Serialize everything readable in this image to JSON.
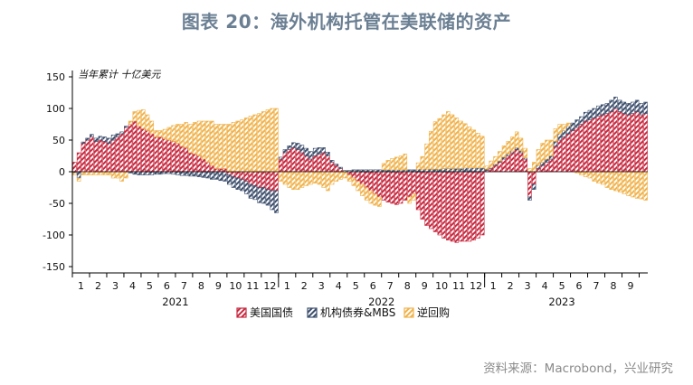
{
  "title": "图表 20：海外机构托管在美联储的资产",
  "source": "资料来源：Macrobond，兴业研究",
  "chart_data": {
    "type": "bar",
    "stacked": true,
    "units": "当年累计  十亿美元",
    "ylim": [
      -160,
      160
    ],
    "yticks": [
      150,
      100,
      50,
      0,
      -50,
      -100,
      -150
    ],
    "legend_position": "bottom",
    "colors": {
      "treasury": "#c8283f",
      "agency": "#3d4f6d",
      "repo": "#f1b24a"
    },
    "months": [
      "1",
      "2",
      "3",
      "4",
      "5",
      "6",
      "7",
      "8",
      "9",
      "10",
      "11",
      "12",
      "1",
      "2",
      "3",
      "4",
      "5",
      "6",
      "7",
      "8",
      "9",
      "10",
      "11",
      "12",
      "1",
      "2",
      "3",
      "4",
      "5",
      "6",
      "7",
      "8",
      "9"
    ],
    "years": [
      {
        "label": "2021",
        "start_month_index": 0,
        "month_count": 12
      },
      {
        "label": "2022",
        "start_month_index": 12,
        "month_count": 12
      },
      {
        "label": "2023",
        "start_month_index": 24,
        "month_count": 9
      }
    ],
    "weeks_per_month": 4,
    "series": [
      {
        "key": "treasury",
        "name": "美国国债",
        "values": [
          15,
          30,
          45,
          50,
          55,
          48,
          50,
          48,
          45,
          50,
          55,
          60,
          70,
          75,
          80,
          72,
          68,
          65,
          60,
          55,
          55,
          52,
          50,
          48,
          45,
          40,
          38,
          30,
          28,
          25,
          20,
          15,
          10,
          5,
          5,
          5,
          -5,
          -8,
          -10,
          -12,
          -15,
          -20,
          -22,
          -25,
          -25,
          -28,
          -30,
          -30,
          20,
          30,
          35,
          38,
          35,
          30,
          25,
          20,
          25,
          28,
          30,
          25,
          15,
          10,
          5,
          0,
          -5,
          -10,
          -15,
          -20,
          -25,
          -30,
          -35,
          -40,
          -45,
          -48,
          -50,
          -52,
          -50,
          -45,
          -40,
          -35,
          -60,
          -75,
          -85,
          -90,
          -95,
          -100,
          -105,
          -108,
          -110,
          -112,
          -110,
          -110,
          -110,
          -108,
          -105,
          -100,
          2,
          5,
          10,
          15,
          20,
          25,
          30,
          35,
          30,
          20,
          -40,
          -20,
          5,
          10,
          15,
          20,
          40,
          50,
          55,
          60,
          65,
          70,
          75,
          80,
          82,
          85,
          88,
          90,
          92,
          95,
          100,
          95,
          92,
          90,
          92,
          95,
          90,
          92
        ]
      },
      {
        "key": "agency",
        "name": "机构债券&MBS",
        "values": [
          -2,
          -10,
          2,
          3,
          4,
          5,
          6,
          7,
          8,
          8,
          5,
          3,
          2,
          -2,
          -4,
          -5,
          -5,
          -5,
          -5,
          -4,
          -4,
          -3,
          -3,
          -4,
          -5,
          -6,
          -6,
          -7,
          -7,
          -8,
          -9,
          -10,
          -12,
          -12,
          -14,
          -15,
          -15,
          -17,
          -18,
          -18,
          -20,
          -22,
          -22,
          -24,
          -25,
          -25,
          -30,
          -35,
          3,
          5,
          6,
          8,
          10,
          12,
          12,
          12,
          12,
          10,
          8,
          6,
          3,
          2,
          2,
          2,
          2,
          3,
          3,
          3,
          3,
          3,
          3,
          3,
          3,
          3,
          3,
          3,
          3,
          3,
          3,
          3,
          4,
          4,
          4,
          4,
          4,
          4,
          5,
          5,
          5,
          5,
          5,
          6,
          6,
          6,
          6,
          6,
          2,
          2,
          2,
          2,
          3,
          3,
          3,
          3,
          3,
          2,
          -5,
          -8,
          5,
          5,
          5,
          5,
          8,
          10,
          10,
          12,
          12,
          12,
          12,
          14,
          15,
          15,
          16,
          16,
          16,
          18,
          18,
          18,
          18,
          18,
          18,
          18,
          18,
          18
        ]
      },
      {
        "key": "repo",
        "name": "逆回购",
        "values": [
          -3,
          -5,
          -5,
          -5,
          -5,
          -5,
          -5,
          -5,
          -5,
          -10,
          -10,
          -15,
          -10,
          5,
          15,
          25,
          30,
          25,
          20,
          10,
          10,
          15,
          20,
          25,
          30,
          35,
          40,
          45,
          50,
          55,
          60,
          65,
          70,
          70,
          70,
          70,
          75,
          78,
          80,
          82,
          85,
          88,
          90,
          92,
          95,
          98,
          100,
          100,
          -15,
          -20,
          -25,
          -28,
          -28,
          -25,
          -22,
          -20,
          -18,
          -20,
          -25,
          -30,
          -20,
          -15,
          -12,
          -10,
          -10,
          -12,
          -15,
          -18,
          -20,
          -20,
          -18,
          -15,
          10,
          15,
          18,
          20,
          22,
          25,
          -10,
          -10,
          10,
          20,
          40,
          60,
          75,
          80,
          85,
          90,
          85,
          80,
          75,
          70,
          65,
          60,
          55,
          50,
          5,
          10,
          12,
          15,
          18,
          20,
          22,
          25,
          20,
          15,
          5,
          15,
          25,
          30,
          30,
          25,
          20,
          15,
          10,
          5,
          0,
          -2,
          -5,
          -8,
          -10,
          -15,
          -18,
          -20,
          -25,
          -28,
          -30,
          -32,
          -35,
          -38,
          -40,
          -42,
          -43,
          -45
        ]
      }
    ]
  }
}
